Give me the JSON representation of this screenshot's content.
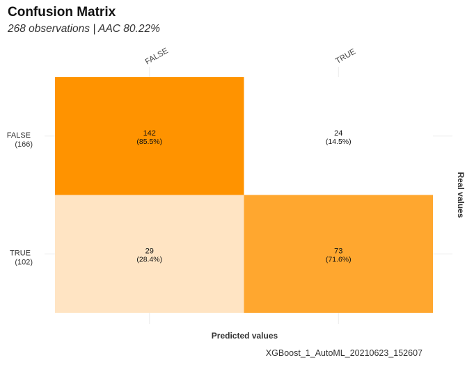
{
  "title": "Confusion Matrix",
  "subtitle": "268 observations | AAC 80.22%",
  "caption": "XGBoost_1_AutoML_20210623_152607",
  "colors": {
    "low": "#FFF8F2",
    "high": "#FF9300"
  },
  "chart_data": {
    "type": "heatmap",
    "xlabel": "Predicted values",
    "ylabel": "Real values",
    "x_categories": [
      "FALSE",
      "TRUE"
    ],
    "y_categories": [
      {
        "label": "FALSE",
        "count": "(166)"
      },
      {
        "label": "TRUE",
        "count": "(102)"
      }
    ],
    "cells": [
      {
        "real": "FALSE",
        "predicted": "FALSE",
        "value": 142,
        "label": "142",
        "pct_label": "(85.5%)",
        "pct": 85.5
      },
      {
        "real": "FALSE",
        "predicted": "TRUE",
        "value": 24,
        "label": "24",
        "pct_label": "(14.5%)",
        "pct": 14.5
      },
      {
        "real": "TRUE",
        "predicted": "FALSE",
        "value": 29,
        "label": "29",
        "pct_label": "(28.4%)",
        "pct": 28.4
      },
      {
        "real": "TRUE",
        "predicted": "TRUE",
        "value": 73,
        "label": "73",
        "pct_label": "(71.6%)",
        "pct": 71.6
      }
    ],
    "grid": true
  }
}
